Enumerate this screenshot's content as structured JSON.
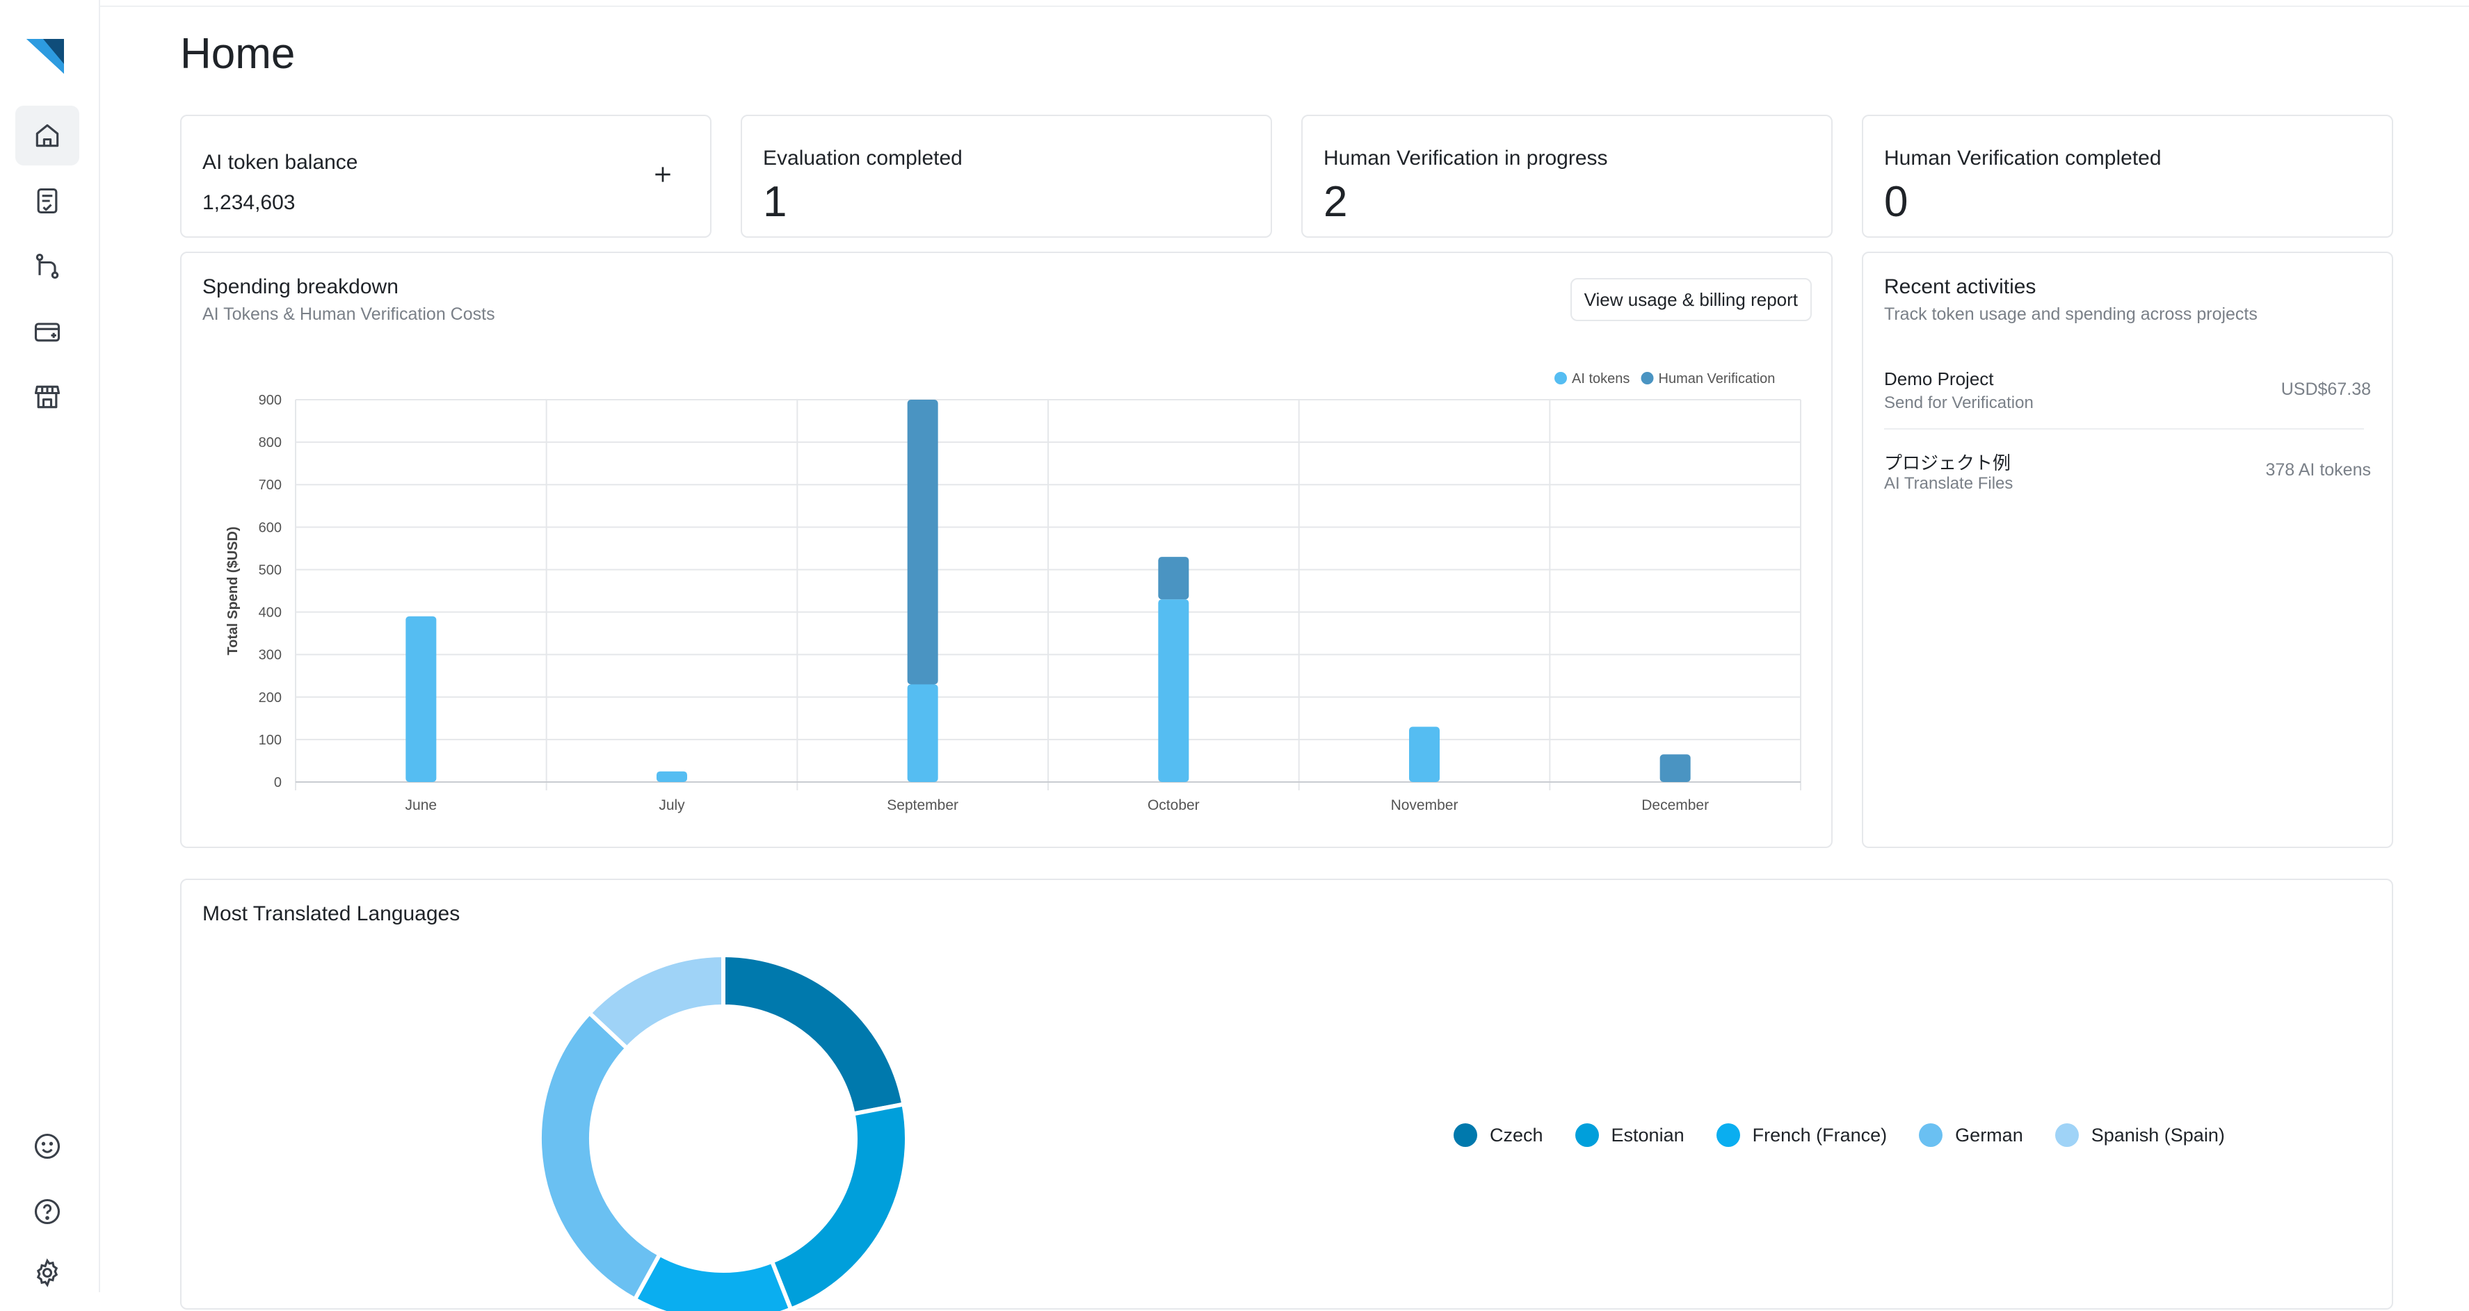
{
  "page": {
    "title": "Home"
  },
  "sidebar": {
    "items": [
      {
        "name": "home",
        "icon": "home-icon",
        "active": true
      },
      {
        "name": "projects",
        "icon": "document-check-icon",
        "active": false
      },
      {
        "name": "workflows",
        "icon": "git-branch-icon",
        "active": false
      },
      {
        "name": "billing",
        "icon": "credit-card-plus-icon",
        "active": false
      },
      {
        "name": "marketplace",
        "icon": "store-icon",
        "active": false
      }
    ],
    "bottom_items": [
      {
        "name": "feedback",
        "icon": "smiley-icon"
      },
      {
        "name": "help",
        "icon": "question-icon"
      },
      {
        "name": "settings",
        "icon": "gear-icon"
      }
    ]
  },
  "stats": {
    "token_balance": {
      "label": "AI token balance",
      "value": "1,234,603"
    },
    "evaluation_completed": {
      "label": "Evaluation completed",
      "value": "1"
    },
    "hv_in_progress": {
      "label": "Human Verification in progress",
      "value": "2"
    },
    "hv_completed": {
      "label": "Human Verification completed",
      "value": "0"
    }
  },
  "spending": {
    "title": "Spending breakdown",
    "subtitle": "AI Tokens & Human Verification Costs",
    "report_button": "View usage & billing report"
  },
  "chart_data": {
    "type": "bar",
    "stacked": true,
    "categories": [
      "June",
      "July",
      "September",
      "October",
      "November",
      "December"
    ],
    "series": [
      {
        "name": "AI tokens",
        "color": "#55bdf2",
        "values": [
          390,
          25,
          230,
          430,
          130,
          0
        ]
      },
      {
        "name": "Human Verification",
        "color": "#4a94c2",
        "values": [
          0,
          0,
          670,
          100,
          0,
          65
        ]
      }
    ],
    "ylabel": "Total Spend ($USD)",
    "xlabel": "",
    "ylim": [
      0,
      900
    ],
    "yticks": [
      0,
      100,
      200,
      300,
      400,
      500,
      600,
      700,
      800,
      900
    ],
    "grid": true,
    "legend_position": "top-right"
  },
  "activities": {
    "title": "Recent activities",
    "subtitle": "Track token usage and spending across projects",
    "items": [
      {
        "name": "Demo Project",
        "desc": "Send for Verification",
        "amount": "USD$67.38"
      },
      {
        "name": "プロジェクト例",
        "desc": "AI Translate Files",
        "amount": "378 AI tokens"
      }
    ]
  },
  "languages": {
    "title": "Most Translated Languages",
    "chart_data": {
      "type": "pie",
      "donut": true,
      "labels": [
        "Czech",
        "Estonian",
        "French (France)",
        "German",
        "Spanish (Spain)"
      ],
      "values": [
        22,
        22,
        14,
        29,
        13
      ],
      "colors": [
        "#0079ad",
        "#009fdb",
        "#0aaef0",
        "#6ac0f2",
        "#9fd3f7"
      ]
    }
  }
}
